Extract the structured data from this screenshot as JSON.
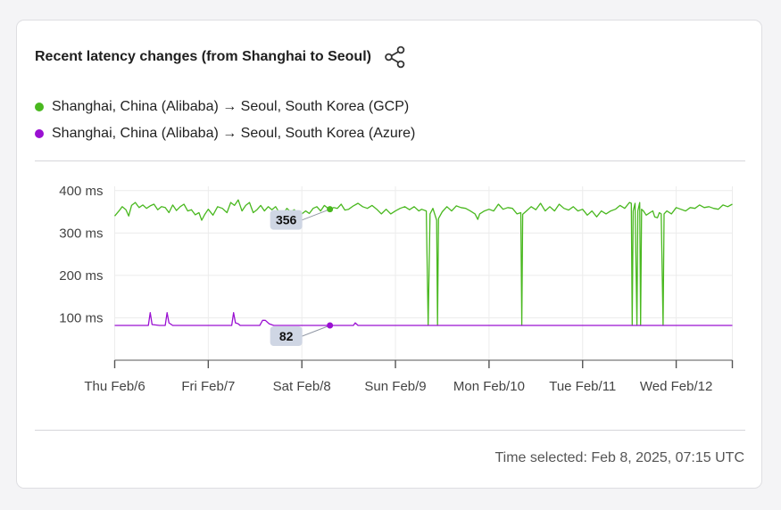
{
  "card": {
    "title": "Recent latency changes (from Shanghai to Seoul)",
    "share_icon": "share-icon",
    "footer_text": "Time selected: Feb 8, 2025, 07:15 UTC"
  },
  "colors": {
    "gcp": "#49b81f",
    "azure": "#9a10d2",
    "label_bg": "#cfd6e4",
    "grid": "#ececec",
    "axis": "#555555"
  },
  "chart_data": {
    "type": "line",
    "x_unit": "days since Feb 6, 2025 00:00 UTC",
    "xlim": [
      0,
      6.6
    ],
    "ylim": [
      0,
      410
    ],
    "y_ticks": [
      100,
      200,
      300,
      400
    ],
    "y_tick_labels": [
      "100 ms",
      "200 ms",
      "300 ms",
      "400 ms"
    ],
    "x_ticks": [
      0,
      1,
      2,
      3,
      4,
      5,
      6
    ],
    "x_tick_labels": [
      "Thu Feb/6",
      "Fri Feb/7",
      "Sat Feb/8",
      "Sun Feb/9",
      "Mon Feb/10",
      "Tue Feb/11",
      "Wed Feb/12"
    ],
    "grid": true,
    "legend_position": "top-left",
    "selected_x": 2.3,
    "series": [
      {
        "name": "Shanghai, China (Alibaba) → Seoul, South Korea (GCP)",
        "color": "#49b81f",
        "selected_value": 356,
        "points": [
          [
            0.0,
            340
          ],
          [
            0.05,
            353
          ],
          [
            0.08,
            362
          ],
          [
            0.12,
            355
          ],
          [
            0.15,
            340
          ],
          [
            0.18,
            365
          ],
          [
            0.22,
            372
          ],
          [
            0.26,
            360
          ],
          [
            0.3,
            366
          ],
          [
            0.34,
            358
          ],
          [
            0.38,
            364
          ],
          [
            0.42,
            368
          ],
          [
            0.46,
            355
          ],
          [
            0.5,
            362
          ],
          [
            0.54,
            360
          ],
          [
            0.58,
            348
          ],
          [
            0.62,
            366
          ],
          [
            0.66,
            353
          ],
          [
            0.7,
            362
          ],
          [
            0.74,
            368
          ],
          [
            0.78,
            352
          ],
          [
            0.82,
            355
          ],
          [
            0.86,
            343
          ],
          [
            0.9,
            348
          ],
          [
            0.93,
            330
          ],
          [
            0.96,
            343
          ],
          [
            1.0,
            356
          ],
          [
            1.05,
            342
          ],
          [
            1.1,
            362
          ],
          [
            1.15,
            358
          ],
          [
            1.2,
            348
          ],
          [
            1.24,
            372
          ],
          [
            1.28,
            365
          ],
          [
            1.32,
            378
          ],
          [
            1.36,
            352
          ],
          [
            1.4,
            365
          ],
          [
            1.44,
            372
          ],
          [
            1.48,
            348
          ],
          [
            1.52,
            355
          ],
          [
            1.56,
            365
          ],
          [
            1.6,
            352
          ],
          [
            1.64,
            362
          ],
          [
            1.68,
            355
          ],
          [
            1.72,
            362
          ],
          [
            1.76,
            348
          ],
          [
            1.8,
            345
          ],
          [
            1.84,
            358
          ],
          [
            1.88,
            350
          ],
          [
            1.92,
            355
          ],
          [
            1.96,
            342
          ],
          [
            2.0,
            345
          ],
          [
            2.04,
            352
          ],
          [
            2.08,
            346
          ],
          [
            2.12,
            358
          ],
          [
            2.16,
            362
          ],
          [
            2.2,
            352
          ],
          [
            2.24,
            365
          ],
          [
            2.28,
            358
          ],
          [
            2.3,
            356
          ],
          [
            2.34,
            360
          ],
          [
            2.38,
            358
          ],
          [
            2.42,
            368
          ],
          [
            2.46,
            354
          ],
          [
            2.5,
            356
          ],
          [
            2.55,
            364
          ],
          [
            2.6,
            370
          ],
          [
            2.65,
            362
          ],
          [
            2.7,
            358
          ],
          [
            2.75,
            365
          ],
          [
            2.8,
            356
          ],
          [
            2.85,
            345
          ],
          [
            2.9,
            356
          ],
          [
            2.95,
            345
          ],
          [
            3.0,
            352
          ],
          [
            3.05,
            358
          ],
          [
            3.1,
            362
          ],
          [
            3.15,
            355
          ],
          [
            3.2,
            362
          ],
          [
            3.25,
            352
          ],
          [
            3.28,
            356
          ],
          [
            3.33,
            352
          ],
          [
            3.35,
            82
          ],
          [
            3.37,
            345
          ],
          [
            3.4,
            358
          ],
          [
            3.44,
            330
          ],
          [
            3.45,
            82
          ],
          [
            3.46,
            334
          ],
          [
            3.5,
            350
          ],
          [
            3.55,
            362
          ],
          [
            3.6,
            352
          ],
          [
            3.65,
            364
          ],
          [
            3.7,
            360
          ],
          [
            3.75,
            358
          ],
          [
            3.8,
            352
          ],
          [
            3.85,
            345
          ],
          [
            3.88,
            332
          ],
          [
            3.9,
            345
          ],
          [
            3.95,
            352
          ],
          [
            4.0,
            356
          ],
          [
            4.05,
            352
          ],
          [
            4.1,
            368
          ],
          [
            4.15,
            356
          ],
          [
            4.2,
            360
          ],
          [
            4.25,
            358
          ],
          [
            4.3,
            345
          ],
          [
            4.34,
            348
          ],
          [
            4.35,
            82
          ],
          [
            4.36,
            344
          ],
          [
            4.4,
            352
          ],
          [
            4.45,
            362
          ],
          [
            4.5,
            355
          ],
          [
            4.55,
            370
          ],
          [
            4.6,
            352
          ],
          [
            4.65,
            362
          ],
          [
            4.7,
            352
          ],
          [
            4.75,
            368
          ],
          [
            4.8,
            358
          ],
          [
            4.85,
            354
          ],
          [
            4.9,
            362
          ],
          [
            4.95,
            352
          ],
          [
            5.0,
            356
          ],
          [
            5.05,
            342
          ],
          [
            5.1,
            352
          ],
          [
            5.15,
            338
          ],
          [
            5.2,
            352
          ],
          [
            5.25,
            345
          ],
          [
            5.3,
            352
          ],
          [
            5.35,
            356
          ],
          [
            5.4,
            365
          ],
          [
            5.45,
            358
          ],
          [
            5.5,
            372
          ],
          [
            5.52,
            370
          ],
          [
            5.53,
            82
          ],
          [
            5.54,
            352
          ],
          [
            5.56,
            370
          ],
          [
            5.58,
            82
          ],
          [
            5.59,
            352
          ],
          [
            5.61,
            372
          ],
          [
            5.62,
            82
          ],
          [
            5.63,
            356
          ],
          [
            5.65,
            352
          ],
          [
            5.68,
            342
          ],
          [
            5.72,
            348
          ],
          [
            5.75,
            352
          ],
          [
            5.77,
            338
          ],
          [
            5.8,
            336
          ],
          [
            5.82,
            348
          ],
          [
            5.84,
            345
          ],
          [
            5.86,
            82
          ],
          [
            5.87,
            345
          ],
          [
            5.9,
            352
          ],
          [
            5.95,
            345
          ],
          [
            6.0,
            360
          ],
          [
            6.05,
            356
          ],
          [
            6.1,
            352
          ],
          [
            6.15,
            360
          ],
          [
            6.2,
            358
          ],
          [
            6.25,
            366
          ],
          [
            6.3,
            360
          ],
          [
            6.35,
            362
          ],
          [
            6.4,
            358
          ],
          [
            6.45,
            356
          ],
          [
            6.5,
            366
          ],
          [
            6.55,
            362
          ],
          [
            6.6,
            368
          ]
        ]
      },
      {
        "name": "Shanghai, China (Alibaba) → Seoul, South Korea (Azure)",
        "color": "#9a10d2",
        "selected_value": 82,
        "points": [
          [
            0.0,
            82
          ],
          [
            0.36,
            82
          ],
          [
            0.38,
            112
          ],
          [
            0.4,
            84
          ],
          [
            0.48,
            82
          ],
          [
            0.54,
            82
          ],
          [
            0.56,
            112
          ],
          [
            0.58,
            88
          ],
          [
            0.62,
            82
          ],
          [
            1.25,
            82
          ],
          [
            1.27,
            112
          ],
          [
            1.29,
            88
          ],
          [
            1.32,
            86
          ],
          [
            1.34,
            82
          ],
          [
            1.55,
            82
          ],
          [
            1.58,
            94
          ],
          [
            1.61,
            94
          ],
          [
            1.65,
            86
          ],
          [
            1.7,
            82
          ],
          [
            2.3,
            82
          ],
          [
            2.55,
            82
          ],
          [
            2.57,
            88
          ],
          [
            2.6,
            82
          ],
          [
            6.6,
            82
          ]
        ]
      }
    ]
  }
}
